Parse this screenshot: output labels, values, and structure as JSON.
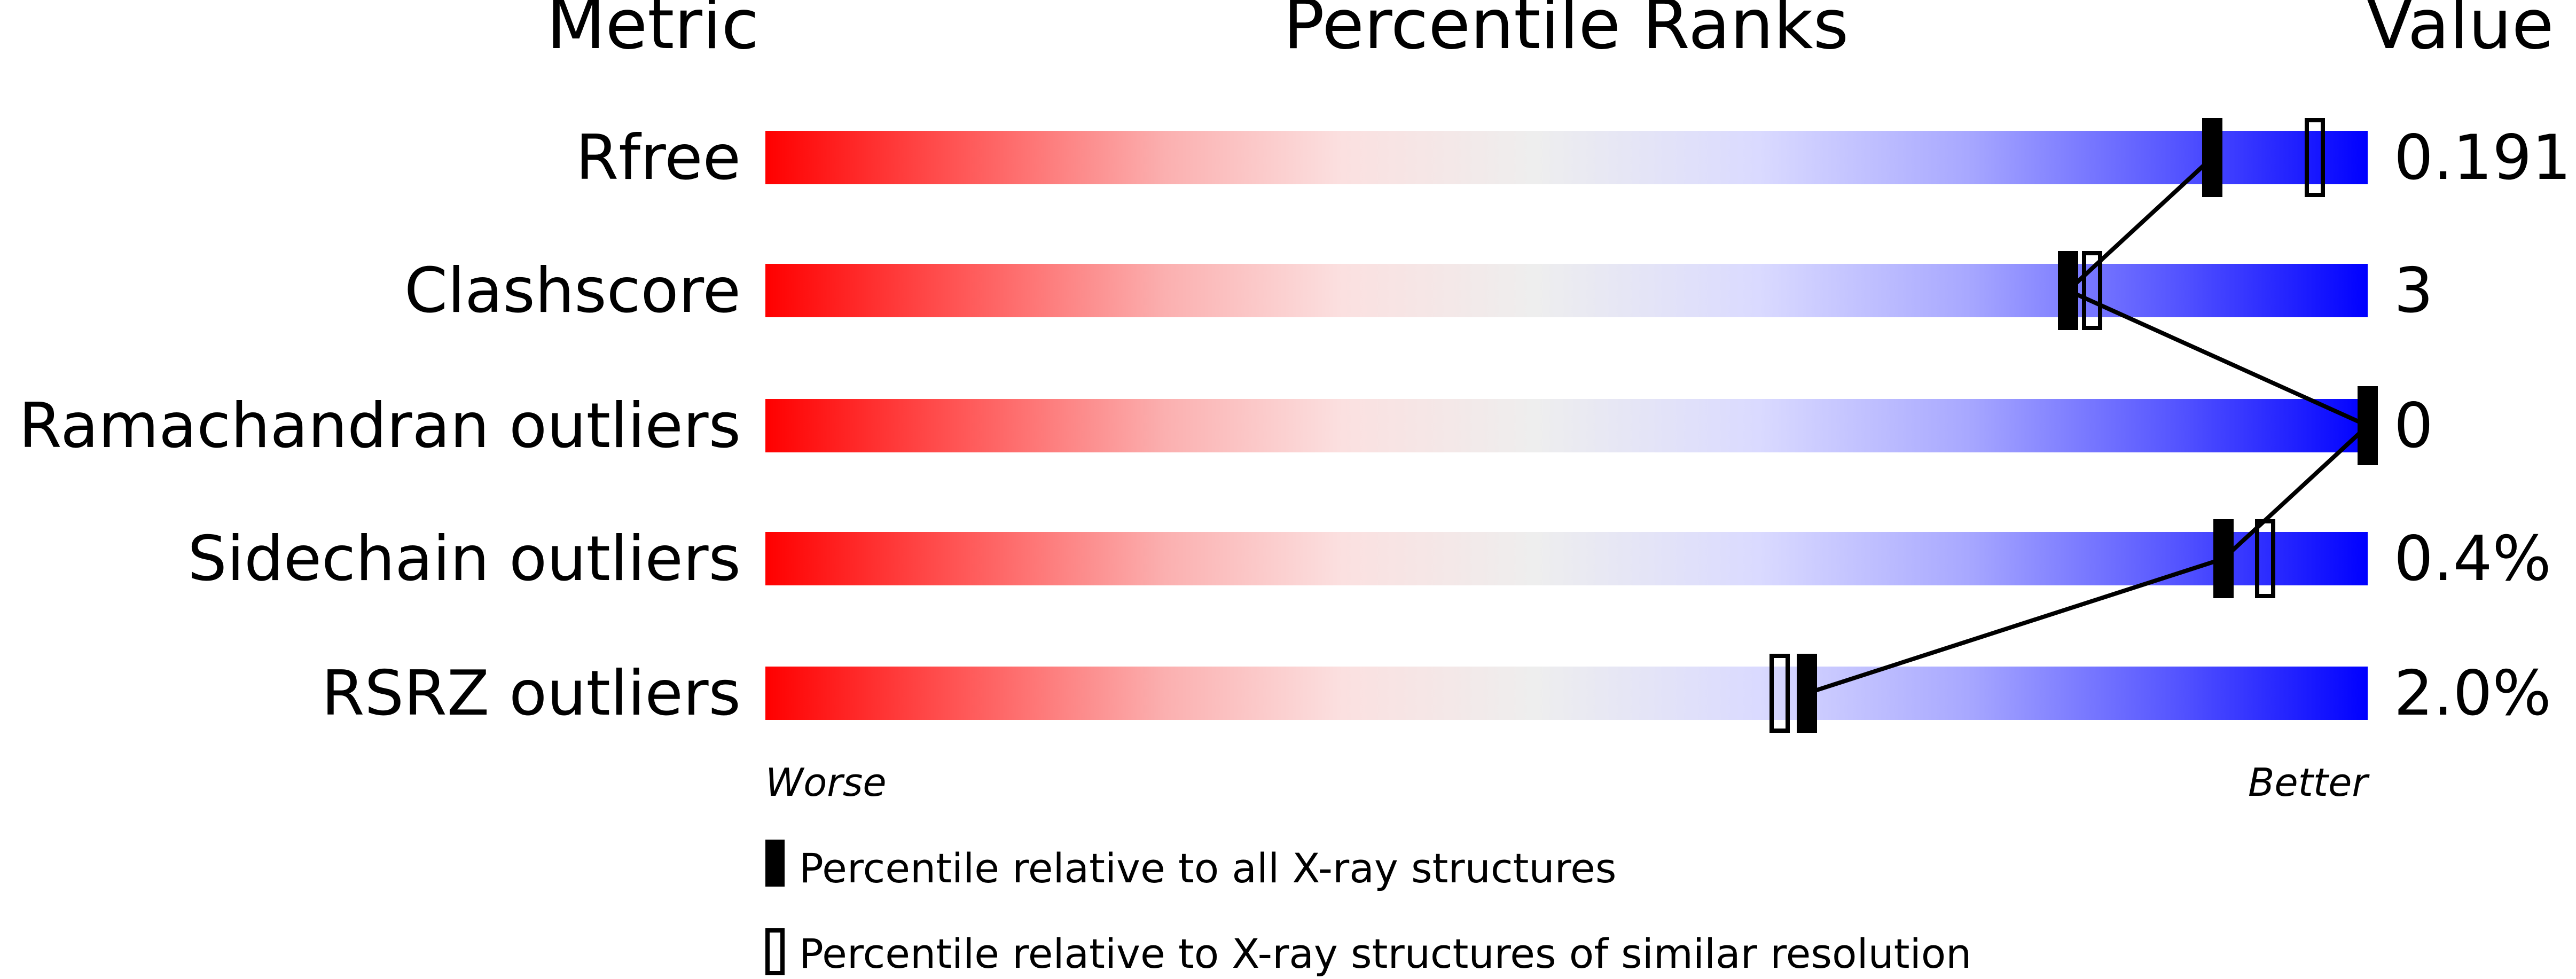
{
  "chart_data": {
    "type": "bar",
    "headers": {
      "metric": "Metric",
      "ranks": "Percentile Ranks",
      "value": "Value"
    },
    "xlim": [
      0,
      100
    ],
    "axis_labels": {
      "left": "Worse",
      "right": "Better"
    },
    "metrics": [
      {
        "name": "Rfree",
        "value": "0.191",
        "percentile_all": 90.3,
        "percentile_similar": 96.7
      },
      {
        "name": "Clashscore",
        "value": "3",
        "percentile_all": 81.3,
        "percentile_similar": 82.8
      },
      {
        "name": "Ramachandran outliers",
        "value": "0",
        "percentile_all": 100,
        "percentile_similar": null
      },
      {
        "name": "Sidechain outliers",
        "value": "0.4%",
        "percentile_all": 91.0,
        "percentile_similar": 93.6
      },
      {
        "name": "RSRZ outliers",
        "value": "2.0%",
        "percentile_all": 65.0,
        "percentile_similar": 63.3
      }
    ],
    "legend": [
      {
        "marker": "filled",
        "label": "Percentile relative to all X-ray structures"
      },
      {
        "marker": "open",
        "label": "Percentile relative to X-ray structures of similar resolution"
      }
    ],
    "colors": {
      "worse": "#ff0000",
      "middle": "#eeeeee",
      "better": "#0000ff",
      "marker": "#000000"
    }
  }
}
